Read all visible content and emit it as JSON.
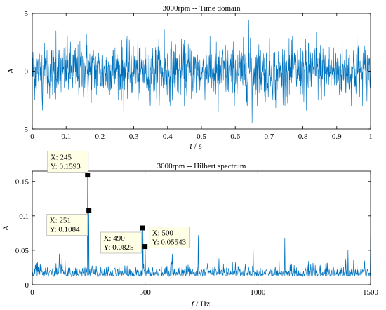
{
  "chart_data": [
    {
      "type": "line",
      "title": "3000rpm -- Time domain",
      "xlabel_var": "t",
      "xlabel_unit": " / s",
      "ylabel": "A",
      "xlim": [
        0,
        1
      ],
      "ylim": [
        -5,
        5
      ],
      "xticks": [
        "0",
        "0.1",
        "0.2",
        "0.3",
        "0.4",
        "0.5",
        "0.6",
        "0.7",
        "0.8",
        "0.9",
        "1"
      ],
      "yticks": [
        "5",
        "0",
        "-5"
      ],
      "grid": false,
      "signal": {
        "description_values": "dense vibration signal",
        "base_amplitude": 1.2,
        "peak_amplitude": 4.5,
        "samples": 1400,
        "peaks": [
          {
            "x": 0.07,
            "y": 3.5
          },
          {
            "x": 0.16,
            "y": 3.2
          },
          {
            "x": 0.27,
            "y": -3.6
          },
          {
            "x": 0.39,
            "y": 3.6
          },
          {
            "x": 0.55,
            "y": -3.5
          },
          {
            "x": 0.64,
            "y": 4.4
          },
          {
            "x": 0.65,
            "y": -4.5
          },
          {
            "x": 0.72,
            "y": -3.2
          },
          {
            "x": 0.81,
            "y": -3.4
          },
          {
            "x": 0.84,
            "y": 3.4
          },
          {
            "x": 0.96,
            "y": 3.2
          },
          {
            "x": 0.03,
            "y": -3.4
          }
        ]
      },
      "color": "#0072BD"
    },
    {
      "type": "line",
      "title": "3000rpm -- Hilbert spectrum",
      "xlabel_var": "f",
      "xlabel_unit": " / Hz",
      "ylabel": "A",
      "xlim": [
        0,
        1500
      ],
      "ylim": [
        0,
        0.165
      ],
      "xticks": [
        "0",
        "500",
        "1000",
        "1500"
      ],
      "xtick_values": [
        0,
        500,
        1000,
        1500
      ],
      "yticks": [
        "0.15",
        "0.1",
        "0.05",
        "0"
      ],
      "ytick_values": [
        0.15,
        0.1,
        0.05,
        0
      ],
      "grid": false,
      "spectrum": {
        "noise_floor": 0.012,
        "samples": 900,
        "peaks": [
          {
            "x": 245,
            "y": 0.1593
          },
          {
            "x": 251,
            "y": 0.1084
          },
          {
            "x": 490,
            "y": 0.0825
          },
          {
            "x": 500,
            "y": 0.05543
          },
          {
            "x": 735,
            "y": 0.072
          },
          {
            "x": 1120,
            "y": 0.068
          },
          {
            "x": 1500,
            "y": 0.07
          },
          {
            "x": 120,
            "y": 0.045
          },
          {
            "x": 980,
            "y": 0.052
          },
          {
            "x": 1400,
            "y": 0.05
          },
          {
            "x": 620,
            "y": 0.045
          }
        ]
      },
      "datatips": [
        {
          "x": 245,
          "y": 0.1593,
          "xtext": "X: 245",
          "ytext": "Y: 0.1593",
          "anchor": "upper-left"
        },
        {
          "x": 251,
          "y": 0.1084,
          "xtext": "X: 251",
          "ytext": "Y: 0.1084",
          "anchor": "lower-left"
        },
        {
          "x": 490,
          "y": 0.0825,
          "xtext": "X: 490",
          "ytext": "Y: 0.0825",
          "anchor": "lower-left"
        },
        {
          "x": 500,
          "y": 0.05543,
          "xtext": "X: 500",
          "ytext": "Y: 0.05543",
          "anchor": "upper-right"
        }
      ],
      "color": "#0072BD"
    }
  ]
}
